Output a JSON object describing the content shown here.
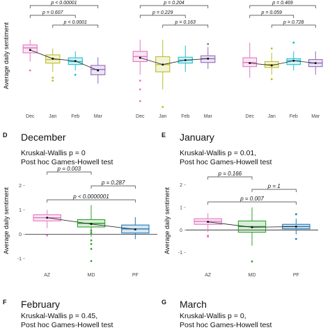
{
  "figure": {
    "colors": {
      "pink": "#E377C2",
      "gold": "#BCBD22",
      "teal": "#17BECF",
      "purple": "#9467BD",
      "green": "#2CA02C",
      "blue": "#1F77B4"
    }
  },
  "chart_data": [
    {
      "id": "top-left",
      "type": "box",
      "ylabel": "Average daily sentiment",
      "categories": [
        "Dec",
        "Jan",
        "Feb",
        "Mar"
      ],
      "color_keys": [
        "pink",
        "gold",
        "teal",
        "purple"
      ],
      "yrange": [
        -1.5,
        1.5
      ],
      "boxes": [
        {
          "q1": 0.55,
          "median": 0.72,
          "q3": 0.82,
          "wlo": 0.25,
          "whi": 1.0,
          "mean": 0.65,
          "outliers": [
            -0.05
          ]
        },
        {
          "q1": 0.2,
          "median": 0.32,
          "q3": 0.48,
          "wlo": -0.1,
          "whi": 0.7,
          "mean": 0.35,
          "outliers": [
            -0.3,
            -0.4
          ]
        },
        {
          "q1": 0.15,
          "median": 0.25,
          "q3": 0.38,
          "wlo": -0.05,
          "whi": 0.6,
          "mean": 0.27,
          "outliers": [
            -0.2
          ]
        },
        {
          "q1": -0.2,
          "median": -0.02,
          "q3": 0.12,
          "wlo": -0.5,
          "whi": 0.4,
          "mean": -0.05,
          "outliers": []
        }
      ],
      "brackets": [
        {
          "from": 0,
          "to": 3,
          "level": 3,
          "label": "p < 0.00001"
        },
        {
          "from": 0,
          "to": 2,
          "level": 2,
          "label": "p = 0.607"
        },
        {
          "from": 1,
          "to": 3,
          "level": 1,
          "label": "p < 0.0001"
        }
      ]
    },
    {
      "id": "top-middle",
      "type": "box",
      "ylabel": "",
      "categories": [
        "Dec",
        "Jan",
        "Feb",
        "Mar"
      ],
      "color_keys": [
        "pink",
        "gold",
        "teal",
        "purple"
      ],
      "yrange": [
        -1.5,
        1.5
      ],
      "boxes": [
        {
          "q1": 0.25,
          "median": 0.42,
          "q3": 0.6,
          "wlo": -0.2,
          "whi": 1.0,
          "mean": 0.38,
          "outliers": [
            -0.4,
            -0.7,
            -1.1
          ]
        },
        {
          "q1": -0.1,
          "median": 0.15,
          "q3": 0.42,
          "wlo": -0.7,
          "whi": 1.0,
          "mean": 0.15,
          "outliers": [
            -1.3
          ]
        },
        {
          "q1": 0.2,
          "median": 0.3,
          "q3": 0.4,
          "wlo": -0.1,
          "whi": 0.8,
          "mean": 0.3,
          "outliers": []
        },
        {
          "q1": 0.22,
          "median": 0.35,
          "q3": 0.45,
          "wlo": 0.0,
          "whi": 0.75,
          "mean": 0.35,
          "outliers": [
            0.85
          ]
        }
      ],
      "brackets": [
        {
          "from": 0,
          "to": 3,
          "level": 3,
          "label": "p = 0.204"
        },
        {
          "from": 0,
          "to": 2,
          "level": 2,
          "label": "p = 0.229"
        },
        {
          "from": 1,
          "to": 3,
          "level": 1,
          "label": "p = 0.163"
        }
      ]
    },
    {
      "id": "top-right",
      "type": "box",
      "ylabel": "",
      "categories": [
        "Dec",
        "Jan",
        "Feb",
        "Mar"
      ],
      "color_keys": [
        "pink",
        "gold",
        "teal",
        "purple"
      ],
      "yrange": [
        -1.5,
        1.5
      ],
      "boxes": [
        {
          "q1": 0.08,
          "median": 0.22,
          "q3": 0.38,
          "wlo": -0.3,
          "whi": 0.9,
          "mean": 0.2,
          "outliers": []
        },
        {
          "q1": 0.05,
          "median": 0.15,
          "q3": 0.25,
          "wlo": -0.2,
          "whi": 0.55,
          "mean": 0.12,
          "outliers": [
            -0.35,
            0.7
          ]
        },
        {
          "q1": 0.15,
          "median": 0.28,
          "q3": 0.35,
          "wlo": -0.05,
          "whi": 0.6,
          "mean": 0.28,
          "outliers": [
            0.9
          ]
        },
        {
          "q1": 0.08,
          "median": 0.2,
          "q3": 0.32,
          "wlo": -0.2,
          "whi": 0.6,
          "mean": 0.2,
          "outliers": []
        }
      ],
      "brackets": [
        {
          "from": 0,
          "to": 3,
          "level": 3,
          "label": "p = 0.469"
        },
        {
          "from": 0,
          "to": 2,
          "level": 2,
          "label": "p = 0.059"
        },
        {
          "from": 1,
          "to": 3,
          "level": 1,
          "label": "p = 0.728"
        }
      ]
    },
    {
      "id": "D",
      "type": "box",
      "panel_letter": "D",
      "title": "December",
      "stats_line1": "Kruskal-Wallis p = 0",
      "stats_line2": "Post hoc Games-Howell test",
      "ylabel": "Average daily sentiment",
      "categories": [
        "AZ",
        "MD",
        "PF"
      ],
      "color_keys": [
        "pink",
        "green",
        "blue"
      ],
      "yrange": [
        -1.3,
        2.3
      ],
      "yticks": [
        -1,
        0,
        1,
        2
      ],
      "boxes": [
        {
          "q1": 0.55,
          "median": 0.68,
          "q3": 0.8,
          "wlo": 0.25,
          "whi": 1.0,
          "mean": 0.68,
          "outliers": [
            -0.05
          ]
        },
        {
          "q1": 0.3,
          "median": 0.45,
          "q3": 0.6,
          "wlo": -0.1,
          "whi": 1.2,
          "mean": 0.42,
          "outliers": [
            -0.25,
            -0.4,
            -0.6,
            -1.1,
            0.05,
            0.15
          ]
        },
        {
          "q1": 0.05,
          "median": 0.22,
          "q3": 0.38,
          "wlo": -0.2,
          "whi": 0.7,
          "mean": 0.2,
          "outliers": []
        }
      ],
      "brackets": [
        {
          "from": 0,
          "to": 1,
          "level": 3,
          "label": "p = 0.003"
        },
        {
          "from": 1,
          "to": 2,
          "level": 2,
          "label": "p = 0.287"
        },
        {
          "from": 0,
          "to": 2,
          "level": 1,
          "label": "p < 0.0000001"
        }
      ]
    },
    {
      "id": "E",
      "type": "box",
      "panel_letter": "E",
      "title": "January",
      "stats_line1": "Kruskal-Wallis p = 0.01,",
      "stats_line2": "Post hoc Games-Howell test",
      "ylabel": "Average daily sentiment",
      "categories": [
        "AZ",
        "MD",
        "PF"
      ],
      "color_keys": [
        "pink",
        "green",
        "blue"
      ],
      "yrange": [
        -1.6,
        2.3
      ],
      "yticks": [
        -1,
        0,
        1,
        2
      ],
      "boxes": [
        {
          "q1": 0.25,
          "median": 0.38,
          "q3": 0.5,
          "wlo": -0.1,
          "whi": 0.75,
          "mean": 0.36,
          "outliers": [
            -0.25,
            -0.3
          ]
        },
        {
          "q1": -0.1,
          "median": 0.15,
          "q3": 0.4,
          "wlo": -0.7,
          "whi": 1.0,
          "mean": 0.12,
          "outliers": [
            -1.4
          ]
        },
        {
          "q1": 0.05,
          "median": 0.15,
          "q3": 0.25,
          "wlo": -0.2,
          "whi": 0.5,
          "mean": 0.15,
          "outliers": [
            -0.4,
            0.7
          ]
        }
      ],
      "brackets": [
        {
          "from": 0,
          "to": 1,
          "level": 3,
          "label": "p = 0.166"
        },
        {
          "from": 1,
          "to": 2,
          "level": 2,
          "label": "p = 1"
        },
        {
          "from": 0,
          "to": 2,
          "level": 1,
          "label": "p = 0.007"
        }
      ]
    }
  ],
  "stubs": [
    {
      "letter": "F",
      "title": "February",
      "line1": "Kruskal-Wallis p = 0.45,",
      "line2": "Post hoc Games-Howell test"
    },
    {
      "letter": "G",
      "title": "March",
      "line1": "Kruskal-Wallis p = 0,",
      "line2": "Post hoc Games-Howell test"
    }
  ]
}
